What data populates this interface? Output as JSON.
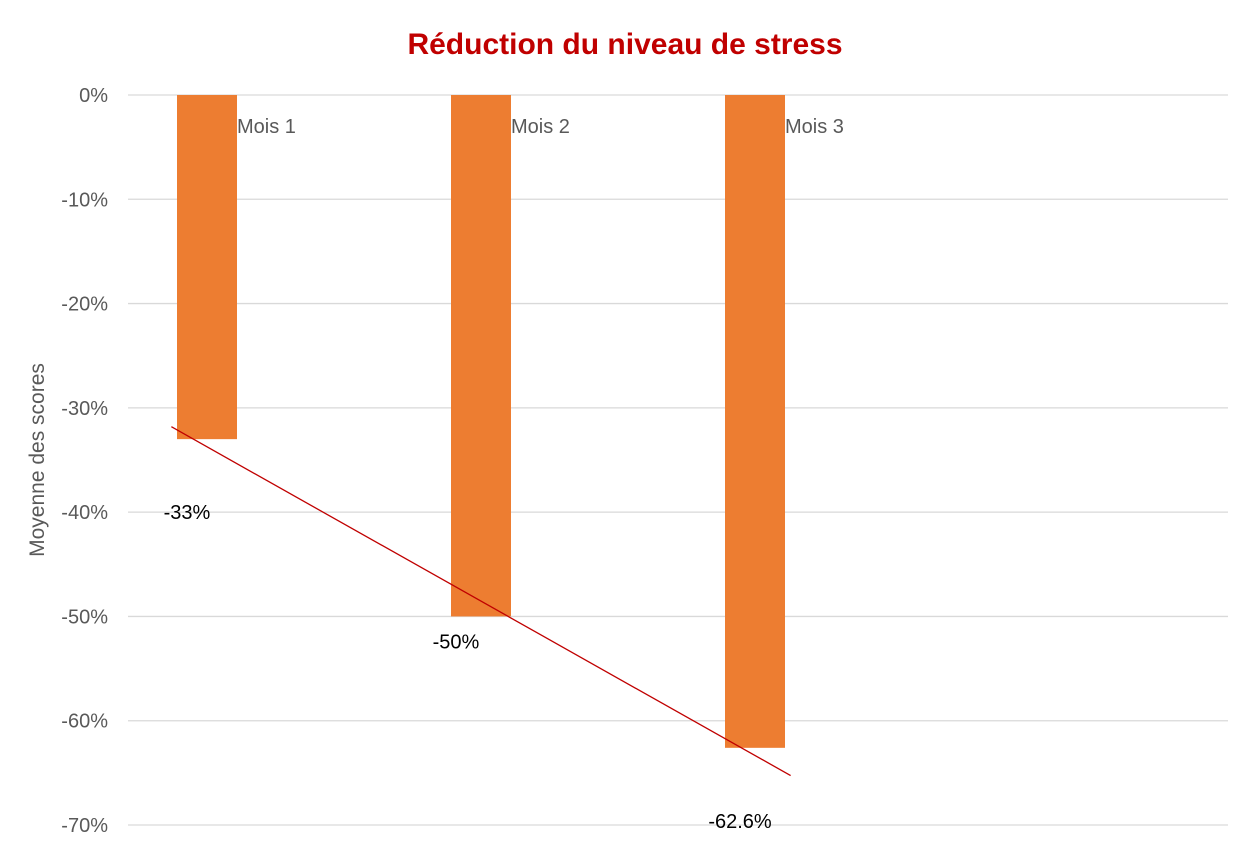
{
  "chart_data": {
    "type": "bar",
    "title": "Réduction du niveau de stress",
    "xlabel": "",
    "ylabel": "Moyenne des scores",
    "ylim": [
      -70,
      0
    ],
    "y_tick_values": [
      0,
      -10,
      -20,
      -30,
      -40,
      -50,
      -60,
      -70
    ],
    "y_tick_labels": [
      "0%",
      "-10%",
      "-20%",
      "-30%",
      "-40%",
      "-50%",
      "-60%",
      "-70%"
    ],
    "categories": [
      "Mois 1",
      "Mois 2",
      "Mois 3"
    ],
    "values": [
      -33,
      -50,
      -62.6
    ],
    "data_labels": [
      "-33%",
      "-50%",
      "-62.6%"
    ],
    "grid": true,
    "legend": "none",
    "trendline": {
      "type": "linear"
    },
    "colors": {
      "bar": "#ed7d31",
      "trendline": "#c00000",
      "grid": "#d9d9d9",
      "title": "#c00000",
      "axis_text": "#595959"
    }
  }
}
